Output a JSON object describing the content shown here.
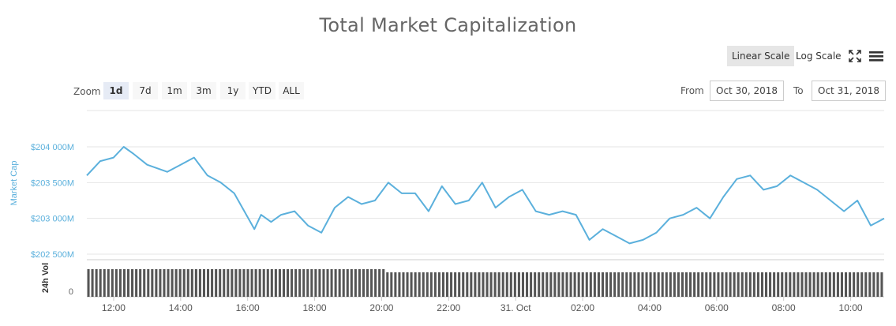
{
  "header": {
    "title": "Total Market Capitalization"
  },
  "toolbar": {
    "linear_label": "Linear Scale",
    "log_label": "Log Scale",
    "fullscreen_icon": "fullscreen-icon",
    "menu_icon": "hamburger-menu-icon"
  },
  "range_selector": {
    "zoom_label": "Zoom",
    "buttons": [
      "1d",
      "7d",
      "1m",
      "3m",
      "1y",
      "YTD",
      "ALL"
    ],
    "selected": "1d",
    "from_label": "From",
    "from_value": "Oct 30, 2018",
    "to_label": "To",
    "to_value": "Oct 31, 2018"
  },
  "colors": {
    "line": "#5bb0dc",
    "axis_text": "#5bb0dc",
    "volume_bar": "#555555",
    "grid": "#e6e6e6"
  },
  "chart_data": {
    "type": "line",
    "title": "Total Market Capitalization",
    "ylabel": "Market Cap",
    "y_ticks": [
      "$202 500M",
      "$203 000M",
      "$203 500M",
      "$204 000M"
    ],
    "y_tick_values": [
      202500,
      203000,
      203500,
      204000
    ],
    "ylim": [
      202500,
      204000
    ],
    "x_ticks": [
      "12:00",
      "14:00",
      "16:00",
      "18:00",
      "20:00",
      "22:00",
      "31. Oct",
      "02:00",
      "04:00",
      "06:00",
      "08:00",
      "10:00"
    ],
    "x_tick_hours": [
      12,
      14,
      16,
      18,
      20,
      22,
      24,
      26,
      28,
      30,
      32,
      34
    ],
    "x_range_hours": [
      11.2,
      35.0
    ],
    "series": [
      {
        "hours": [
          11.2,
          11.6,
          12.0,
          12.3,
          12.6,
          13.0,
          13.3,
          13.6,
          14.0,
          14.4,
          14.8,
          15.2,
          15.6,
          15.9,
          16.2,
          16.4,
          16.7,
          17.0,
          17.4,
          17.8,
          18.2,
          18.6,
          19.0,
          19.4,
          19.8,
          20.2,
          20.6,
          21.0,
          21.4,
          21.8,
          22.2,
          22.6,
          23.0,
          23.4,
          23.8,
          24.2,
          24.6,
          25.0,
          25.4,
          25.8,
          26.2,
          26.6,
          27.0,
          27.4,
          27.8,
          28.2,
          28.6,
          29.0,
          29.4,
          29.8,
          30.2,
          30.6,
          31.0,
          31.4,
          31.8,
          32.2,
          32.6,
          33.0,
          33.4,
          33.8,
          34.2,
          34.6,
          35.0
        ],
        "values": [
          203600,
          203800,
          203850,
          204000,
          203900,
          203750,
          203700,
          203650,
          203750,
          203850,
          203600,
          203500,
          203350,
          203100,
          202850,
          203050,
          202950,
          203050,
          203100,
          202900,
          202800,
          203150,
          203300,
          203200,
          203250,
          203500,
          203350,
          203350,
          203100,
          203450,
          203200,
          203250,
          203500,
          203150,
          203300,
          203400,
          203100,
          203050,
          203100,
          203050,
          202700,
          202850,
          202750,
          202650,
          202700,
          202800,
          203000,
          203050,
          203150,
          203000,
          203300,
          203550,
          203600,
          203400,
          203450,
          203600,
          203500,
          203400,
          203250,
          203100,
          203250,
          202900,
          203000
        ]
      }
    ],
    "volume": {
      "ylabel": "24h Vol",
      "y_ticks": [
        "0"
      ]
    }
  }
}
